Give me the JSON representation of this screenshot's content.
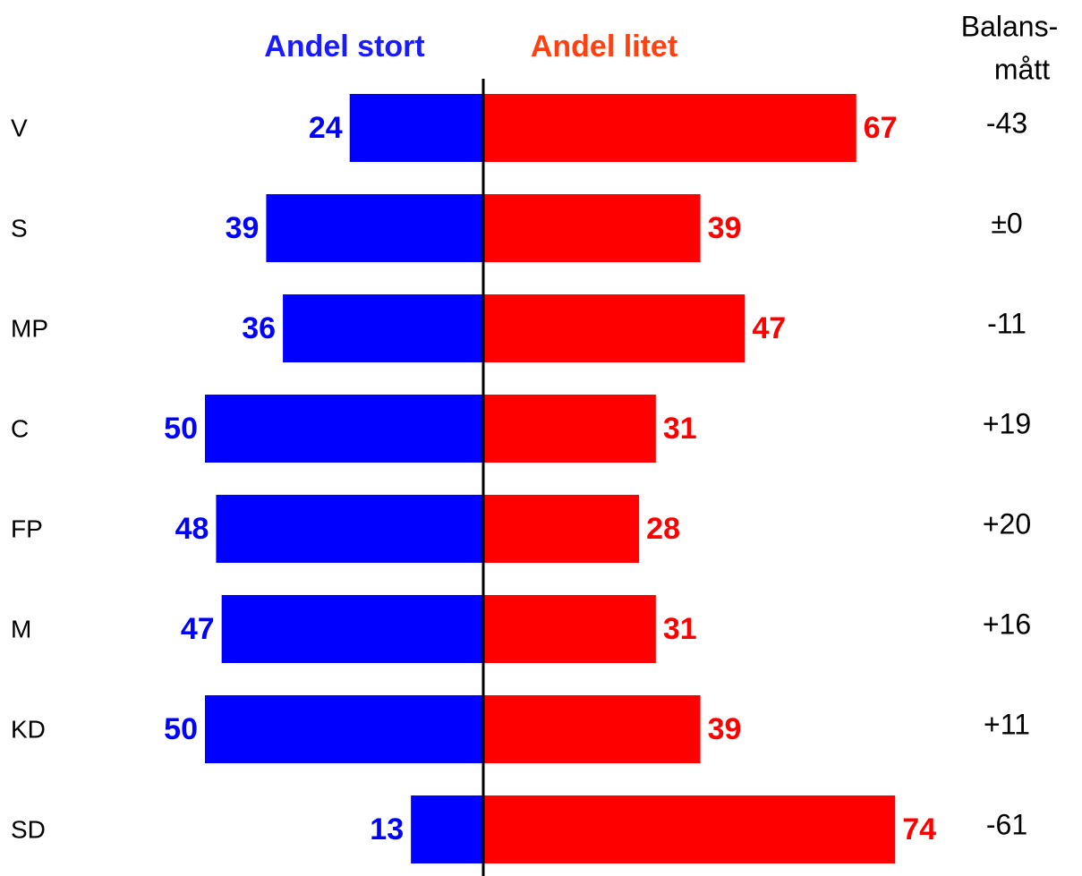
{
  "chart_data": {
    "type": "diverging-bar",
    "categories": [
      "V",
      "S",
      "MP",
      "C",
      "FP",
      "M",
      "KD",
      "SD"
    ],
    "series": [
      {
        "name": "Andel stort",
        "color": "#0000ff",
        "values": [
          24,
          39,
          36,
          50,
          48,
          47,
          50,
          13
        ]
      },
      {
        "name": "Andel litet",
        "color": "#ff0000",
        "values": [
          67,
          39,
          47,
          31,
          28,
          31,
          39,
          74
        ]
      }
    ],
    "balance": {
      "title": [
        "Balans-",
        "mått"
      ],
      "values": [
        -43,
        0,
        -11,
        19,
        20,
        16,
        11,
        -61
      ],
      "value_labels": [
        "-43",
        "±0",
        "-11",
        "+19",
        "+20",
        "+16",
        "+11",
        "-61"
      ]
    }
  }
}
